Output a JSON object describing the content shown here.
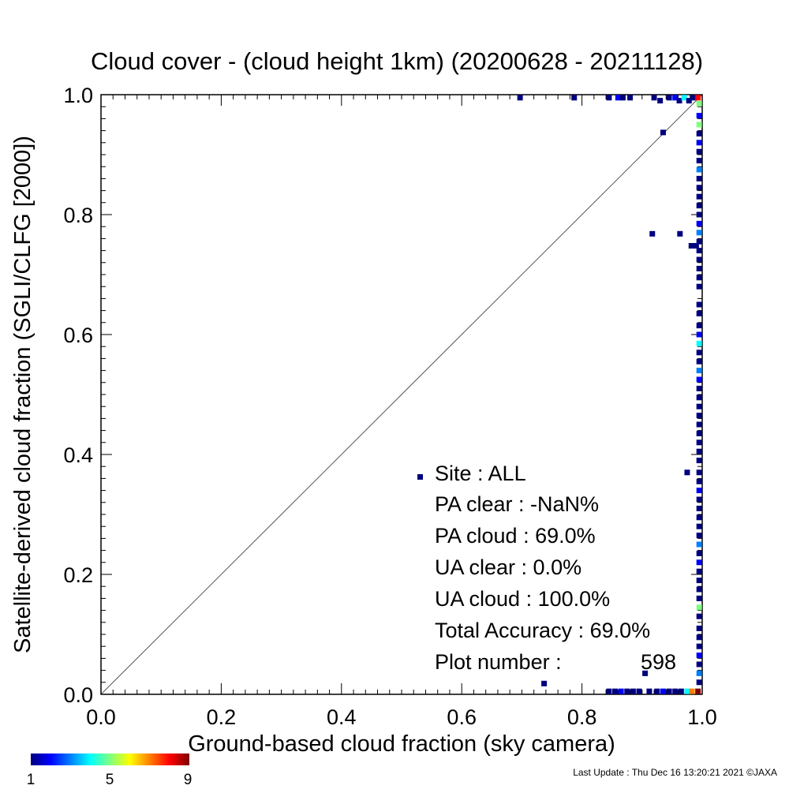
{
  "chart_data": {
    "type": "scatter",
    "title": "Cloud cover - (cloud height 1km)  (20200628 - 20211128)",
    "xlabel": "Ground-based cloud fraction (sky camera)",
    "ylabel": "Satellite-derived cloud fraction (SGLI/CLFG [2000])",
    "xlim": [
      0,
      1
    ],
    "ylim": [
      0,
      1
    ],
    "x_ticks": [
      "0.0",
      "0.2",
      "0.4",
      "0.6",
      "0.8",
      "1.0"
    ],
    "y_ticks": [
      "0.0",
      "0.2",
      "0.4",
      "0.6",
      "0.8",
      "1.0"
    ],
    "grid": false,
    "reference_line": "y = x",
    "stats": {
      "site": "Site : ALL",
      "pa_clear": "PA clear :  -NaN%",
      "pa_cloud": "PA cloud :  69.0%",
      "ua_clear": "UA clear :   0.0%",
      "ua_cloud": "UA cloud : 100.0%",
      "total_accuracy": "Total Accuracy :  69.0%",
      "plot_number_label": "Plot number :",
      "plot_number_value": "598"
    },
    "colorbar": {
      "min_label": "1",
      "mid_label": "5",
      "max_label": "9",
      "colors": [
        "#00007f",
        "#0000ff",
        "#007fff",
        "#00ffff",
        "#7fff7f",
        "#ffff00",
        "#ff7f00",
        "#ff0000",
        "#7f0000"
      ]
    },
    "points": [
      {
        "x": 0.697,
        "y": 0.995,
        "c": 1
      },
      {
        "x": 0.787,
        "y": 0.995,
        "c": 1
      },
      {
        "x": 0.845,
        "y": 0.995,
        "c": 1
      },
      {
        "x": 0.86,
        "y": 0.995,
        "c": 2
      },
      {
        "x": 0.868,
        "y": 0.995,
        "c": 1
      },
      {
        "x": 0.88,
        "y": 0.995,
        "c": 1
      },
      {
        "x": 0.92,
        "y": 0.995,
        "c": 1
      },
      {
        "x": 0.93,
        "y": 0.99,
        "c": 1
      },
      {
        "x": 0.945,
        "y": 0.995,
        "c": 1
      },
      {
        "x": 0.955,
        "y": 0.995,
        "c": 2
      },
      {
        "x": 0.962,
        "y": 0.99,
        "c": 1
      },
      {
        "x": 0.97,
        "y": 0.995,
        "c": 4
      },
      {
        "x": 0.978,
        "y": 0.99,
        "c": 1
      },
      {
        "x": 0.985,
        "y": 0.995,
        "c": 1
      },
      {
        "x": 0.993,
        "y": 0.995,
        "c": 8
      },
      {
        "x": 0.935,
        "y": 0.937,
        "c": 1
      },
      {
        "x": 0.917,
        "y": 0.768,
        "c": 1
      },
      {
        "x": 0.963,
        "y": 0.768,
        "c": 1
      },
      {
        "x": 0.982,
        "y": 0.748,
        "c": 1
      },
      {
        "x": 0.99,
        "y": 0.748,
        "c": 1
      },
      {
        "x": 0.975,
        "y": 0.37,
        "c": 1
      },
      {
        "x": 0.737,
        "y": 0.018,
        "c": 1
      },
      {
        "x": 0.905,
        "y": 0.035,
        "c": 1
      },
      {
        "x": 0.845,
        "y": 0.005,
        "c": 1
      },
      {
        "x": 0.855,
        "y": 0.005,
        "c": 1
      },
      {
        "x": 0.865,
        "y": 0.005,
        "c": 2
      },
      {
        "x": 0.875,
        "y": 0.005,
        "c": 1
      },
      {
        "x": 0.885,
        "y": 0.005,
        "c": 1
      },
      {
        "x": 0.895,
        "y": 0.005,
        "c": 1
      },
      {
        "x": 0.912,
        "y": 0.005,
        "c": 1
      },
      {
        "x": 0.925,
        "y": 0.005,
        "c": 1
      },
      {
        "x": 0.935,
        "y": 0.005,
        "c": 2
      },
      {
        "x": 0.945,
        "y": 0.005,
        "c": 1
      },
      {
        "x": 0.955,
        "y": 0.005,
        "c": 1
      },
      {
        "x": 0.965,
        "y": 0.005,
        "c": 1
      },
      {
        "x": 0.975,
        "y": 0.005,
        "c": 4
      },
      {
        "x": 0.983,
        "y": 0.005,
        "c": 7
      },
      {
        "x": 0.993,
        "y": 0.005,
        "c": 9
      },
      {
        "x": 0.995,
        "y": 0.985,
        "c": 5
      },
      {
        "x": 0.995,
        "y": 0.965,
        "c": 2
      },
      {
        "x": 0.995,
        "y": 0.95,
        "c": 5
      },
      {
        "x": 0.995,
        "y": 0.935,
        "c": 1
      },
      {
        "x": 0.995,
        "y": 0.92,
        "c": 2
      },
      {
        "x": 0.995,
        "y": 0.905,
        "c": 1
      },
      {
        "x": 0.995,
        "y": 0.89,
        "c": 1
      },
      {
        "x": 0.995,
        "y": 0.875,
        "c": 3
      },
      {
        "x": 0.995,
        "y": 0.86,
        "c": 1
      },
      {
        "x": 0.995,
        "y": 0.845,
        "c": 1
      },
      {
        "x": 0.995,
        "y": 0.83,
        "c": 1
      },
      {
        "x": 0.995,
        "y": 0.815,
        "c": 1
      },
      {
        "x": 0.995,
        "y": 0.8,
        "c": 1
      },
      {
        "x": 0.995,
        "y": 0.785,
        "c": 2
      },
      {
        "x": 0.995,
        "y": 0.77,
        "c": 3
      },
      {
        "x": 0.995,
        "y": 0.755,
        "c": 1
      },
      {
        "x": 0.995,
        "y": 0.74,
        "c": 1
      },
      {
        "x": 0.995,
        "y": 0.725,
        "c": 1
      },
      {
        "x": 0.995,
        "y": 0.71,
        "c": 1
      },
      {
        "x": 0.995,
        "y": 0.695,
        "c": 1
      },
      {
        "x": 0.995,
        "y": 0.68,
        "c": 1
      },
      {
        "x": 0.995,
        "y": 0.65,
        "c": 1
      },
      {
        "x": 0.995,
        "y": 0.635,
        "c": 1
      },
      {
        "x": 0.995,
        "y": 0.615,
        "c": 1
      },
      {
        "x": 0.995,
        "y": 0.6,
        "c": 2
      },
      {
        "x": 0.995,
        "y": 0.585,
        "c": 4
      },
      {
        "x": 0.995,
        "y": 0.57,
        "c": 1
      },
      {
        "x": 0.995,
        "y": 0.555,
        "c": 1
      },
      {
        "x": 0.995,
        "y": 0.54,
        "c": 3
      },
      {
        "x": 0.995,
        "y": 0.525,
        "c": 2
      },
      {
        "x": 0.995,
        "y": 0.51,
        "c": 1
      },
      {
        "x": 0.995,
        "y": 0.495,
        "c": 1
      },
      {
        "x": 0.995,
        "y": 0.48,
        "c": 1
      },
      {
        "x": 0.995,
        "y": 0.465,
        "c": 1
      },
      {
        "x": 0.995,
        "y": 0.45,
        "c": 1
      },
      {
        "x": 0.995,
        "y": 0.435,
        "c": 1
      },
      {
        "x": 0.995,
        "y": 0.42,
        "c": 1
      },
      {
        "x": 0.995,
        "y": 0.405,
        "c": 1
      },
      {
        "x": 0.995,
        "y": 0.39,
        "c": 1
      },
      {
        "x": 0.995,
        "y": 0.37,
        "c": 1
      },
      {
        "x": 0.995,
        "y": 0.355,
        "c": 1
      },
      {
        "x": 0.995,
        "y": 0.34,
        "c": 2
      },
      {
        "x": 0.995,
        "y": 0.325,
        "c": 1
      },
      {
        "x": 0.995,
        "y": 0.31,
        "c": 1
      },
      {
        "x": 0.995,
        "y": 0.295,
        "c": 1
      },
      {
        "x": 0.995,
        "y": 0.28,
        "c": 1
      },
      {
        "x": 0.995,
        "y": 0.265,
        "c": 1
      },
      {
        "x": 0.995,
        "y": 0.25,
        "c": 3
      },
      {
        "x": 0.995,
        "y": 0.235,
        "c": 1
      },
      {
        "x": 0.995,
        "y": 0.22,
        "c": 2
      },
      {
        "x": 0.995,
        "y": 0.205,
        "c": 1
      },
      {
        "x": 0.995,
        "y": 0.19,
        "c": 1
      },
      {
        "x": 0.995,
        "y": 0.175,
        "c": 1
      },
      {
        "x": 0.995,
        "y": 0.16,
        "c": 1
      },
      {
        "x": 0.995,
        "y": 0.145,
        "c": 5
      },
      {
        "x": 0.995,
        "y": 0.13,
        "c": 1
      },
      {
        "x": 0.995,
        "y": 0.11,
        "c": 1
      },
      {
        "x": 0.995,
        "y": 0.095,
        "c": 1
      },
      {
        "x": 0.995,
        "y": 0.08,
        "c": 1
      },
      {
        "x": 0.995,
        "y": 0.065,
        "c": 2
      },
      {
        "x": 0.995,
        "y": 0.05,
        "c": 1
      },
      {
        "x": 0.995,
        "y": 0.035,
        "c": 3
      },
      {
        "x": 0.995,
        "y": 0.02,
        "c": 1
      }
    ]
  },
  "footer": {
    "last_update": "Last Update : Thu Dec 16 13:20:21 2021  ©JAXA"
  }
}
